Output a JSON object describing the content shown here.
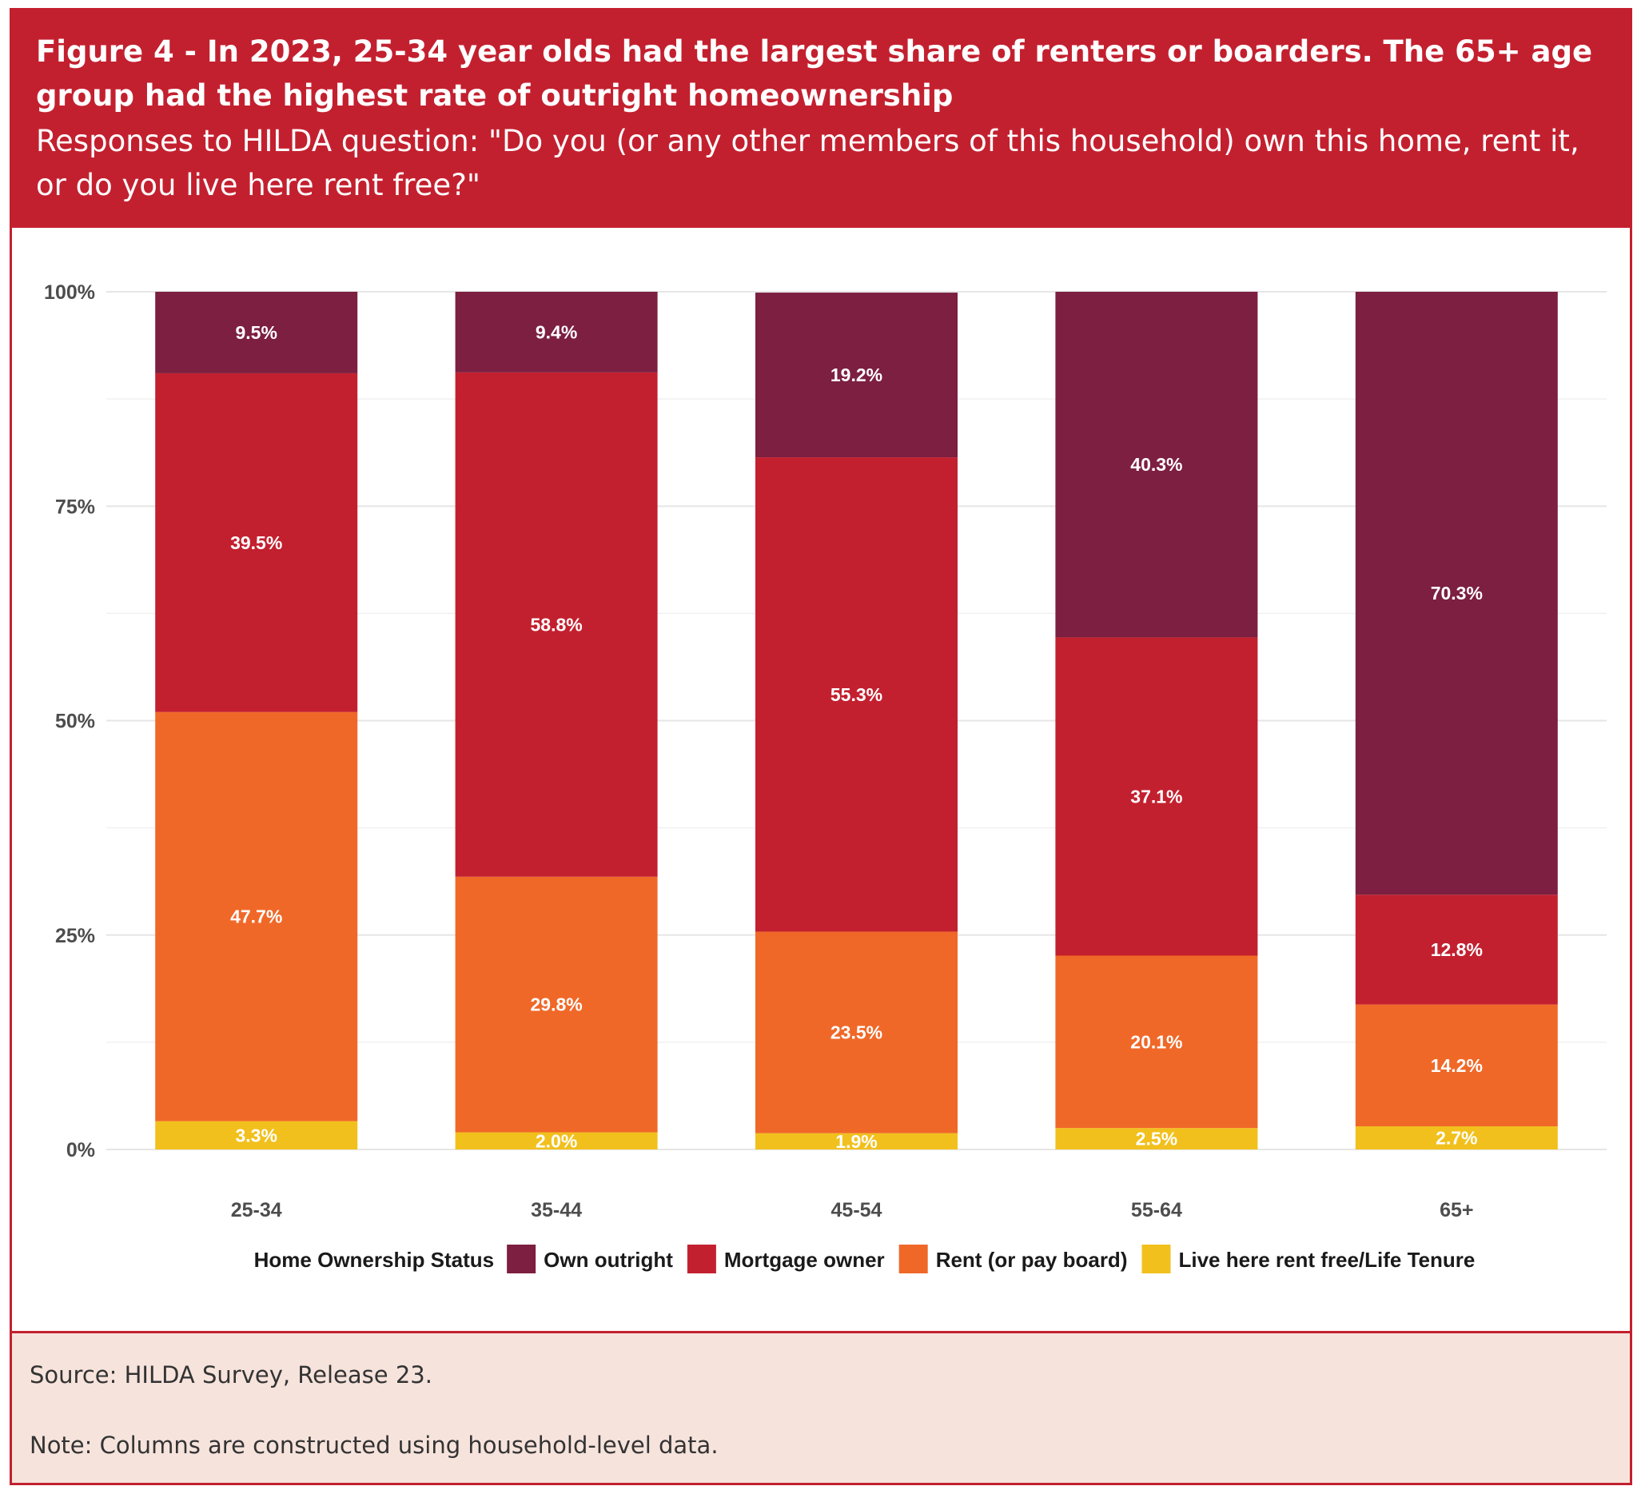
{
  "header": {
    "title": "Figure 4 - In 2023, 25-34 year olds had the largest share of renters or boarders. The 65+ age group had the highest rate of outright homeownership",
    "subtitle": "Responses to HILDA question: \"Do you (or any other members of this household) own this home, rent it, or do you live here rent free?\""
  },
  "footer": {
    "source": "Source: HILDA Survey, Release 23.",
    "note": "Note: Columns are constructed using household-level data."
  },
  "chart_data": {
    "type": "bar",
    "stacked": true,
    "categories": [
      "25-34",
      "35-44",
      "45-54",
      "55-64",
      "65+"
    ],
    "y_ticks": [
      "0%",
      "25%",
      "50%",
      "75%",
      "100%"
    ],
    "ylim": [
      0,
      100
    ],
    "grid": true,
    "legend_title": "Home Ownership Status",
    "legend_position": "bottom",
    "series": [
      {
        "name": "Live here rent free/Life Tenure",
        "color": "#f2c01d",
        "values": [
          3.3,
          2.0,
          1.9,
          2.5,
          2.7
        ],
        "labels": [
          "3.3%",
          "2.0%",
          "1.9%",
          "2.5%",
          "2.7%"
        ]
      },
      {
        "name": "Rent (or pay board)",
        "color": "#f06828",
        "values": [
          47.7,
          29.8,
          23.5,
          20.1,
          14.2
        ],
        "labels": [
          "47.7%",
          "29.8%",
          "23.5%",
          "20.1%",
          "14.2%"
        ]
      },
      {
        "name": "Mortgage owner",
        "color": "#c3202f",
        "values": [
          39.5,
          58.8,
          55.3,
          37.1,
          12.8
        ],
        "labels": [
          "39.5%",
          "58.8%",
          "55.3%",
          "37.1%",
          "12.8%"
        ]
      },
      {
        "name": "Own outright",
        "color": "#7c1f40",
        "values": [
          9.5,
          9.4,
          19.2,
          40.3,
          70.3
        ],
        "labels": [
          "9.5%",
          "9.4%",
          "19.2%",
          "40.3%",
          "70.3%"
        ]
      }
    ],
    "legend_order": [
      "Own outright",
      "Mortgage owner",
      "Rent (or pay board)",
      "Live here rent free/Life Tenure"
    ]
  }
}
